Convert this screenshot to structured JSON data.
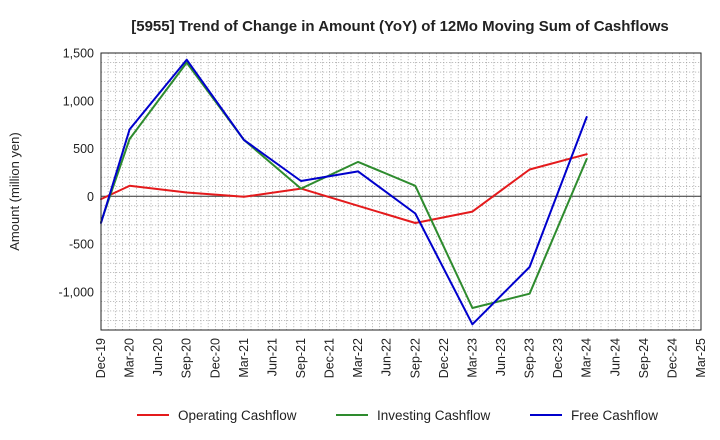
{
  "chart_data": {
    "type": "line",
    "title": "[5955]  Trend of Change in Amount (YoY) of 12Mo Moving Sum of Cashflows",
    "xlabel": "",
    "ylabel": "Amount (million yen)",
    "ylim": [
      -1400,
      1500
    ],
    "yticks": [
      -1000,
      -500,
      0,
      500,
      1000,
      1500
    ],
    "ytick_labels": [
      "-1,000",
      "-500",
      "0",
      "500",
      "1,000",
      "1,500"
    ],
    "categories": [
      "Dec-19",
      "Mar-20",
      "Jun-20",
      "Sep-20",
      "Dec-20",
      "Mar-21",
      "Jun-21",
      "Sep-21",
      "Dec-21",
      "Mar-22",
      "Jun-22",
      "Sep-22",
      "Dec-22",
      "Mar-23",
      "Jun-23",
      "Sep-23",
      "Dec-23",
      "Mar-24",
      "Jun-24",
      "Sep-24",
      "Dec-24",
      "Mar-25"
    ],
    "grid": true,
    "legend_position": "bottom",
    "series": [
      {
        "name": "Operating Cashflow",
        "color": "#e41a1c",
        "points": [
          [
            0,
            -30
          ],
          [
            1,
            110
          ],
          [
            3,
            40
          ],
          [
            5,
            -5
          ],
          [
            7,
            80
          ],
          [
            9,
            -100
          ],
          [
            11,
            -280
          ],
          [
            13,
            -160
          ],
          [
            15,
            280
          ],
          [
            17,
            440
          ]
        ]
      },
      {
        "name": "Investing Cashflow",
        "color": "#2e8b2e",
        "points": [
          [
            0,
            -270
          ],
          [
            1,
            600
          ],
          [
            3,
            1400
          ],
          [
            5,
            590
          ],
          [
            7,
            80
          ],
          [
            9,
            360
          ],
          [
            11,
            110
          ],
          [
            13,
            -1170
          ],
          [
            15,
            -1020
          ],
          [
            17,
            390
          ]
        ]
      },
      {
        "name": "Free Cashflow",
        "color": "#0000cc",
        "points": [
          [
            0,
            -280
          ],
          [
            1,
            700
          ],
          [
            3,
            1430
          ],
          [
            5,
            590
          ],
          [
            7,
            160
          ],
          [
            9,
            260
          ],
          [
            11,
            -180
          ],
          [
            13,
            -1340
          ],
          [
            15,
            -740
          ],
          [
            17,
            830
          ]
        ]
      }
    ]
  }
}
